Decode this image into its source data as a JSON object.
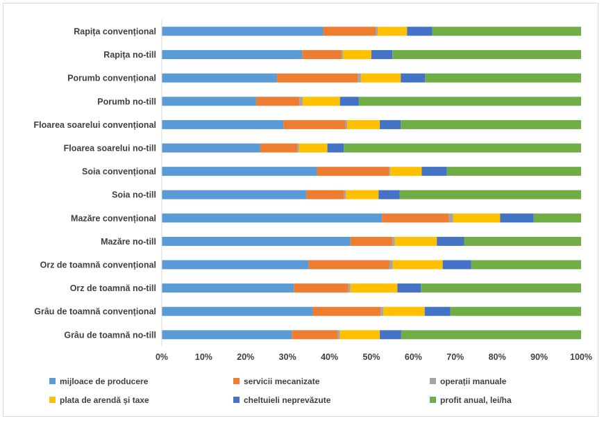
{
  "chart_data": {
    "type": "bar",
    "orientation": "horizontal",
    "stacked": "percent",
    "title": "",
    "xlabel": "",
    "ylabel": "",
    "xlim": [
      0,
      100
    ],
    "x_ticks": [
      "0%",
      "10%",
      "20%",
      "30%",
      "40%",
      "50%",
      "60%",
      "70%",
      "80%",
      "90%",
      "100%"
    ],
    "grid": false,
    "legend_position": "bottom",
    "categories": [
      "Rapița convențional",
      "Rapița no-till",
      "Porumb convențional",
      "Porumb no-till",
      "Floarea soarelui convențional",
      "Floarea soarelui no-till",
      "Soia convențional",
      "Soia no-till",
      "Mazăre convențional",
      "Mazăre no-till",
      "Orz de toamnă convențional",
      "Orz de toamnă no-till",
      "Grâu de toamnă convențional",
      "Grâu de toamnă no-till"
    ],
    "series": [
      {
        "name": "mijloace de producere",
        "color": "#5b9bd5",
        "values": [
          38.5,
          33.5,
          27.5,
          22.5,
          29.0,
          23.5,
          37.0,
          34.5,
          52.5,
          45.0,
          35.0,
          31.5,
          36.0,
          31.0
        ]
      },
      {
        "name": "servicii mecanizate",
        "color": "#ed7d31",
        "values": [
          12.5,
          9.3,
          19.2,
          10.3,
          14.8,
          8.8,
          17.2,
          9.0,
          16.0,
          10.0,
          19.3,
          13.0,
          16.2,
          11.0
        ]
      },
      {
        "name": "operații manuale",
        "color": "#a5a5a5",
        "values": [
          0.5,
          0.4,
          0.8,
          0.8,
          0.4,
          0.4,
          0.3,
          0.4,
          1.0,
          0.6,
          0.8,
          0.5,
          0.6,
          0.5
        ]
      },
      {
        "name": "plata de arendă și taxe",
        "color": "#ffc000",
        "values": [
          7.0,
          6.8,
          9.5,
          8.9,
          7.8,
          6.8,
          7.5,
          7.8,
          11.2,
          10.0,
          11.9,
          11.2,
          9.9,
          9.5
        ]
      },
      {
        "name": "cheltuieli neprevăzute",
        "color": "#4472c4",
        "values": [
          6.0,
          5.0,
          5.8,
          4.5,
          5.0,
          3.9,
          6.0,
          5.0,
          8.0,
          6.5,
          6.8,
          5.6,
          6.1,
          5.1
        ]
      },
      {
        "name": "profit anual, lei/ha",
        "color": "#70ad47",
        "values": [
          35.5,
          45.0,
          37.2,
          53.0,
          43.0,
          56.6,
          32.0,
          43.3,
          11.3,
          27.9,
          26.2,
          38.2,
          31.2,
          42.9
        ]
      }
    ]
  }
}
